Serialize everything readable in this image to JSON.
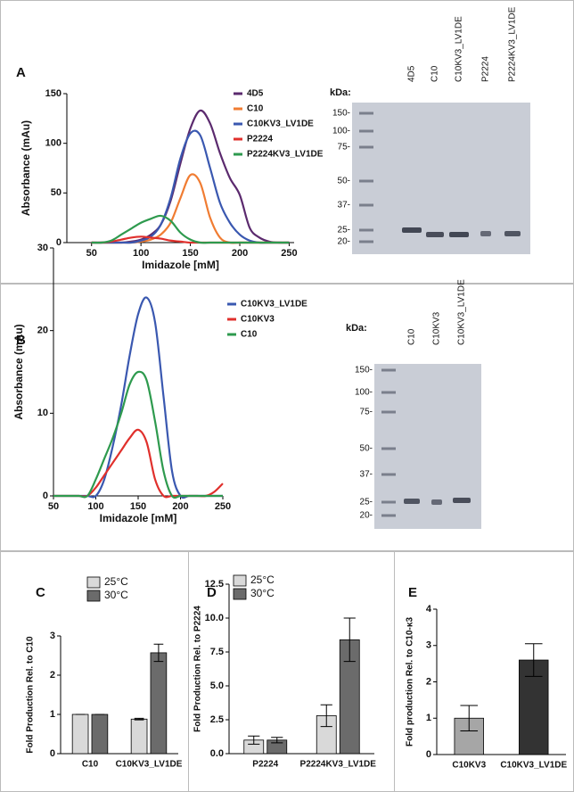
{
  "panel_labels": [
    "A",
    "B",
    "C",
    "D",
    "E"
  ],
  "gels": [
    {
      "unit": "kDa:",
      "lanes": [
        "4D5",
        "C10",
        "C10KV3_LV1DE",
        "P2224",
        "P2224KV3_LV1DE"
      ],
      "markers": [
        "150-",
        "100-",
        "75-",
        "50-",
        "37-",
        "25-",
        "20-"
      ]
    },
    {
      "unit": "kDa:",
      "lanes": [
        "C10",
        "C10KV3",
        "C10KV3_LV1DE"
      ],
      "markers": [
        "150-",
        "100-",
        "75-",
        "50-",
        "37-",
        "25-",
        "20-"
      ]
    }
  ],
  "chart_data": [
    {
      "type": "line",
      "xlabel": "Imidazole [mM]",
      "ylabel": "Absorbance (mAu)",
      "x": [
        50,
        60,
        70,
        80,
        90,
        100,
        110,
        120,
        130,
        140,
        150,
        160,
        170,
        180,
        190,
        200,
        210,
        220,
        230,
        240,
        250
      ],
      "xlim": [
        25,
        255
      ],
      "xticks": [
        50,
        100,
        150,
        200,
        250
      ],
      "ylim": [
        0,
        150
      ],
      "yticks": [
        0,
        50,
        100,
        150
      ],
      "series": [
        {
          "name": "4D5",
          "color": "#5b2a6e",
          "values": [
            0,
            0,
            0,
            0,
            1,
            3,
            8,
            18,
            42,
            80,
            115,
            133,
            120,
            90,
            65,
            48,
            15,
            5,
            1,
            0,
            0
          ]
        },
        {
          "name": "C10",
          "color": "#f07c32",
          "values": [
            0,
            0,
            0,
            0,
            0,
            1,
            3,
            8,
            20,
            45,
            68,
            60,
            25,
            5,
            0,
            0,
            0,
            0,
            0,
            0,
            0
          ]
        },
        {
          "name": "C10KV3_LV1DE",
          "color": "#3a58b0",
          "values": [
            0,
            0,
            0,
            0,
            0,
            2,
            6,
            18,
            45,
            85,
            110,
            108,
            75,
            40,
            20,
            8,
            2,
            0,
            0,
            0,
            0
          ]
        },
        {
          "name": "P2224",
          "color": "#e0302c",
          "values": [
            0,
            0,
            1,
            3,
            5,
            6,
            5,
            4,
            2,
            1,
            0,
            0,
            0,
            0,
            0,
            0,
            0,
            0,
            0,
            0,
            0
          ]
        },
        {
          "name": "P2224KV3_LV1DE",
          "color": "#2e9a4e",
          "values": [
            0,
            0,
            2,
            8,
            14,
            20,
            24,
            27,
            22,
            10,
            3,
            0,
            0,
            0,
            0,
            0,
            0,
            0,
            0,
            0,
            0
          ]
        }
      ]
    },
    {
      "type": "line",
      "xlabel": "Imidazole [mM]",
      "ylabel": "Absorbance (mAu)",
      "x": [
        50,
        60,
        70,
        80,
        90,
        100,
        110,
        120,
        130,
        140,
        150,
        160,
        170,
        180,
        190,
        200,
        210,
        220,
        230,
        240,
        250
      ],
      "xlim": [
        50,
        250
      ],
      "xticks": [
        50,
        100,
        150,
        200,
        250
      ],
      "ylim": [
        0,
        30
      ],
      "yticks": [
        0,
        10,
        20,
        30
      ],
      "series": [
        {
          "name": "C10KV3_LV1DE",
          "color": "#3a58b0",
          "values": [
            0,
            0,
            0,
            0,
            0,
            0,
            2,
            6,
            11,
            17,
            22,
            24,
            21,
            12,
            3,
            0,
            0,
            0,
            0,
            0,
            0
          ]
        },
        {
          "name": "C10KV3",
          "color": "#e0302c",
          "values": [
            0,
            0,
            0,
            0,
            0,
            1,
            2.5,
            4,
            5.5,
            7,
            8,
            6.5,
            2,
            0,
            0,
            0,
            0,
            0,
            0,
            0.5,
            1.5
          ]
        },
        {
          "name": "C10",
          "color": "#2e9a4e",
          "values": [
            0,
            0,
            0,
            0,
            0,
            2,
            4.5,
            7,
            10,
            13.5,
            15,
            14,
            9,
            3,
            0,
            0,
            0,
            0,
            0,
            0,
            0
          ]
        }
      ]
    },
    {
      "type": "bar",
      "ylabel": "Fold Production Rel. to C10",
      "categories": [
        "C10",
        "C10KV3_LV1DE"
      ],
      "ylim": [
        0,
        3
      ],
      "yticks": [
        0,
        1,
        2,
        3
      ],
      "series": [
        {
          "name": "25°C",
          "color": "#d9d9d9",
          "values": [
            1,
            0.88
          ],
          "errors": [
            0,
            0.02
          ]
        },
        {
          "name": "30°C",
          "color": "#6b6b6b",
          "values": [
            1,
            2.57
          ],
          "errors": [
            0,
            0.22
          ]
        }
      ]
    },
    {
      "type": "bar",
      "ylabel": "Fold Production Rel. to P2224",
      "categories": [
        "P2224",
        "P2224KV3_LV1DE"
      ],
      "ylim": [
        0,
        12.5
      ],
      "yticks": [
        {
          "value": 0,
          "label": "0.0"
        },
        2.5,
        {
          "value": 5,
          "label": "5.0"
        },
        7.5,
        {
          "value": 10,
          "label": "10.0"
        },
        12.5
      ],
      "series": [
        {
          "name": "25°C",
          "color": "#d9d9d9",
          "values": [
            1.0,
            2.8
          ],
          "errors": [
            0.3,
            0.8
          ]
        },
        {
          "name": "30°C",
          "color": "#6b6b6b",
          "values": [
            1.0,
            8.4
          ],
          "errors": [
            0.2,
            1.6
          ]
        }
      ]
    },
    {
      "type": "bar",
      "ylabel": "Fold production Rel. to C10-κ3",
      "categories": [
        "C10KV3",
        "C10KV3_LV1DE"
      ],
      "ylim": [
        0,
        4
      ],
      "yticks": [
        0,
        1,
        2,
        3,
        4
      ],
      "series": [
        {
          "colors": [
            "#a6a6a6",
            "#333333"
          ],
          "values": [
            1.0,
            2.6
          ],
          "errors": [
            0.35,
            0.45
          ]
        }
      ]
    }
  ]
}
